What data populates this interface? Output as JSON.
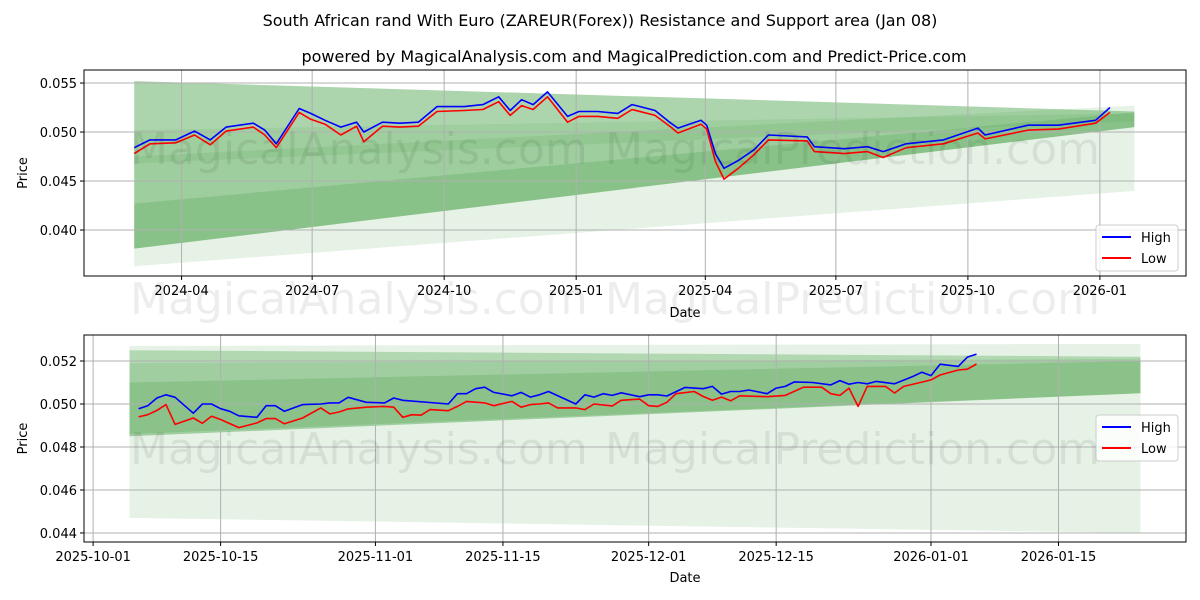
{
  "title": "South African rand With Euro (ZAREUR(Forex)) Resistance and Support area (Jan 08)",
  "subtitle": "powered by MagicalAnalysis.com and MagicalPrediction.com and Predict-Price.com",
  "watermarks": [
    "MagicalAnalysis.com",
    "MagicalPrediction.com"
  ],
  "colors": {
    "high": "#0000ff",
    "low": "#ff0000",
    "band": "#3c9c3c",
    "grid": "#b0b0b0"
  },
  "chart_data": [
    {
      "type": "line",
      "xlabel": "Date",
      "ylabel": "Price",
      "xlim": [
        "2024-01-24",
        "2026-03-02"
      ],
      "ylim": [
        0.03531,
        0.05633
      ],
      "grid": true,
      "legend": {
        "placement": "lower-right",
        "entries": [
          "High",
          "Low"
        ]
      },
      "xticks": [
        {
          "date": "2024-04-01",
          "label": "2024-04"
        },
        {
          "date": "2024-07-01",
          "label": "2024-07"
        },
        {
          "date": "2024-10-01",
          "label": "2024-10"
        },
        {
          "date": "2025-01-01",
          "label": "2025-01"
        },
        {
          "date": "2025-04-01",
          "label": "2025-04"
        },
        {
          "date": "2025-07-01",
          "label": "2025-07"
        },
        {
          "date": "2025-10-01",
          "label": "2025-10"
        },
        {
          "date": "2026-01-01",
          "label": "2026-01"
        }
      ],
      "yticks": [
        {
          "value": 0.04,
          "label": "0.040"
        },
        {
          "value": 0.045,
          "label": "0.045"
        },
        {
          "value": 0.05,
          "label": "0.050"
        },
        {
          "value": 0.055,
          "label": "0.055"
        }
      ],
      "bands": [
        {
          "start": "2024-02-28",
          "end": "2026-01-25",
          "top": [
            0.0552,
            0.0521
          ],
          "bottom": [
            0.0381,
            0.0505
          ],
          "opacity": 0.42
        },
        {
          "start": "2024-02-28",
          "end": "2026-01-25",
          "top": [
            0.0427,
            0.052
          ],
          "bottom": [
            0.0381,
            0.0505
          ],
          "opacity": 0.22
        },
        {
          "start": "2024-02-28",
          "end": "2026-01-25",
          "top": [
            0.0502,
            0.0519
          ],
          "bottom": [
            0.0468,
            0.0511
          ],
          "opacity": 0.12
        },
        {
          "start": "2024-02-28",
          "end": "2026-01-25",
          "top": [
            0.0475,
            0.0527
          ],
          "bottom": [
            0.0363,
            0.044
          ],
          "opacity": 0.13
        }
      ],
      "series": [
        {
          "name": "High",
          "x": [
            "2024-02-28",
            "2024-03-10",
            "2024-03-28",
            "2024-04-10",
            "2024-04-21",
            "2024-05-02",
            "2024-05-21",
            "2024-05-29",
            "2024-06-06",
            "2024-06-22",
            "2024-06-30",
            "2024-07-10",
            "2024-07-21",
            "2024-08-01",
            "2024-08-06",
            "2024-08-19",
            "2024-08-31",
            "2024-09-13",
            "2024-09-26",
            "2024-10-15",
            "2024-10-28",
            "2024-11-08",
            "2024-11-16",
            "2024-11-24",
            "2024-12-02",
            "2024-12-12",
            "2024-12-26",
            "2025-01-03",
            "2025-01-16",
            "2025-01-30",
            "2025-02-09",
            "2025-02-25",
            "2025-03-08",
            "2025-03-13",
            "2025-03-29",
            "2025-04-02",
            "2025-04-08",
            "2025-04-14",
            "2025-04-24",
            "2025-05-05",
            "2025-05-15",
            "2025-06-11",
            "2025-06-16",
            "2025-07-07",
            "2025-07-23",
            "2025-08-03",
            "2025-08-19",
            "2025-09-14",
            "2025-10-08",
            "2025-10-13",
            "2025-11-12",
            "2025-12-03",
            "2025-12-29",
            "2026-01-08"
          ],
          "values": [
            0.0484,
            0.0492,
            0.0492,
            0.0501,
            0.0492,
            0.0505,
            0.0509,
            0.0502,
            0.0488,
            0.0524,
            0.0519,
            0.0512,
            0.0505,
            0.051,
            0.05,
            0.051,
            0.0509,
            0.051,
            0.0526,
            0.0526,
            0.0528,
            0.0536,
            0.0522,
            0.0533,
            0.0528,
            0.0541,
            0.0516,
            0.0521,
            0.0521,
            0.0519,
            0.0528,
            0.0522,
            0.0509,
            0.0504,
            0.0512,
            0.0507,
            0.0478,
            0.0463,
            0.0471,
            0.0482,
            0.0497,
            0.0495,
            0.0485,
            0.0483,
            0.0485,
            0.048,
            0.0488,
            0.0492,
            0.0504,
            0.0497,
            0.0507,
            0.0507,
            0.0512,
            0.0525
          ]
        },
        {
          "name": "Low",
          "x": [
            "2024-02-28",
            "2024-03-10",
            "2024-03-28",
            "2024-04-10",
            "2024-04-21",
            "2024-05-02",
            "2024-05-21",
            "2024-05-29",
            "2024-06-06",
            "2024-06-22",
            "2024-06-30",
            "2024-07-10",
            "2024-07-21",
            "2024-08-01",
            "2024-08-06",
            "2024-08-19",
            "2024-08-31",
            "2024-09-13",
            "2024-09-26",
            "2024-10-15",
            "2024-10-28",
            "2024-11-08",
            "2024-11-16",
            "2024-11-24",
            "2024-12-02",
            "2024-12-12",
            "2024-12-26",
            "2025-01-03",
            "2025-01-16",
            "2025-01-30",
            "2025-02-09",
            "2025-02-25",
            "2025-03-08",
            "2025-03-13",
            "2025-03-29",
            "2025-04-02",
            "2025-04-08",
            "2025-04-14",
            "2025-04-24",
            "2025-05-05",
            "2025-05-15",
            "2025-06-11",
            "2025-06-16",
            "2025-07-07",
            "2025-07-23",
            "2025-08-03",
            "2025-08-19",
            "2025-09-14",
            "2025-10-08",
            "2025-10-13",
            "2025-11-12",
            "2025-12-03",
            "2025-12-29",
            "2026-01-08"
          ],
          "values": [
            0.0478,
            0.0488,
            0.0489,
            0.0497,
            0.0487,
            0.0501,
            0.0505,
            0.0497,
            0.0484,
            0.052,
            0.0513,
            0.0508,
            0.0497,
            0.0506,
            0.049,
            0.0506,
            0.0505,
            0.0506,
            0.0521,
            0.0522,
            0.0523,
            0.0531,
            0.0517,
            0.0527,
            0.0523,
            0.0536,
            0.051,
            0.0516,
            0.0516,
            0.0514,
            0.0523,
            0.0517,
            0.0505,
            0.0499,
            0.0508,
            0.0503,
            0.047,
            0.0452,
            0.0463,
            0.0477,
            0.0492,
            0.0491,
            0.048,
            0.0478,
            0.048,
            0.0474,
            0.0484,
            0.0488,
            0.0499,
            0.0493,
            0.0502,
            0.0503,
            0.0509,
            0.052
          ]
        }
      ]
    },
    {
      "type": "line",
      "xlabel": "Date",
      "ylabel": "Price",
      "xlim": [
        "2025-09-30",
        "2026-01-29"
      ],
      "ylim": [
        0.04358,
        0.05321
      ],
      "grid": true,
      "legend": {
        "placement": "center-right",
        "entries": [
          "High",
          "Low"
        ]
      },
      "xticks": [
        {
          "date": "2025-10-01",
          "label": "2025-10-01"
        },
        {
          "date": "2025-10-15",
          "label": "2025-10-15"
        },
        {
          "date": "2025-11-01",
          "label": "2025-11-01"
        },
        {
          "date": "2025-11-15",
          "label": "2025-11-15"
        },
        {
          "date": "2025-12-01",
          "label": "2025-12-01"
        },
        {
          "date": "2025-12-15",
          "label": "2025-12-15"
        },
        {
          "date": "2026-01-01",
          "label": "2026-01-01"
        },
        {
          "date": "2026-01-15",
          "label": "2026-01-15"
        }
      ],
      "yticks": [
        {
          "value": 0.044,
          "label": "0.044"
        },
        {
          "value": 0.046,
          "label": "0.046"
        },
        {
          "value": 0.048,
          "label": "0.048"
        },
        {
          "value": 0.05,
          "label": "0.050"
        },
        {
          "value": 0.052,
          "label": "0.052"
        }
      ],
      "bands": [
        {
          "start": "2025-10-05",
          "end": "2026-01-24",
          "top": [
            0.0527,
            0.0528
          ],
          "bottom": [
            0.0447,
            0.044
          ],
          "opacity": 0.13
        },
        {
          "start": "2025-10-05",
          "end": "2026-01-24",
          "top": [
            0.0525,
            0.0522
          ],
          "bottom": [
            0.0485,
            0.0505
          ],
          "opacity": 0.3
        },
        {
          "start": "2025-10-05",
          "end": "2026-01-24",
          "top": [
            0.0519,
            0.0521
          ],
          "bottom": [
            0.0485,
            0.0505
          ],
          "opacity": 0.15
        },
        {
          "start": "2025-10-05",
          "end": "2026-01-24",
          "top": [
            0.051,
            0.052
          ],
          "bottom": [
            0.0486,
            0.0505
          ],
          "opacity": 0.22
        }
      ],
      "series": [
        {
          "name": "High",
          "x": [
            "2025-10-06",
            "2025-10-07",
            "2025-10-08",
            "2025-10-09",
            "2025-10-10",
            "2025-10-12",
            "2025-10-13",
            "2025-10-14",
            "2025-10-15",
            "2025-10-16",
            "2025-10-17",
            "2025-10-19",
            "2025-10-20",
            "2025-10-21",
            "2025-10-22",
            "2025-10-24",
            "2025-10-26",
            "2025-10-27",
            "2025-10-28",
            "2025-10-29",
            "2025-10-31",
            "2025-11-02",
            "2025-11-03",
            "2025-11-04",
            "2025-11-09",
            "2025-11-10",
            "2025-11-11",
            "2025-11-12",
            "2025-11-13",
            "2025-11-14",
            "2025-11-16",
            "2025-11-17",
            "2025-11-18",
            "2025-11-19",
            "2025-11-20",
            "2025-11-23",
            "2025-11-24",
            "2025-11-25",
            "2025-11-26",
            "2025-11-27",
            "2025-11-28",
            "2025-11-30",
            "2025-12-01",
            "2025-12-02",
            "2025-12-03",
            "2025-12-05",
            "2025-12-07",
            "2025-12-08",
            "2025-12-09",
            "2025-12-10",
            "2025-12-11",
            "2025-12-12",
            "2025-12-14",
            "2025-12-15",
            "2025-12-16",
            "2025-12-17",
            "2025-12-19",
            "2025-12-21",
            "2025-12-22",
            "2025-12-23",
            "2025-12-24",
            "2025-12-25",
            "2025-12-26",
            "2025-12-28",
            "2025-12-30",
            "2025-12-31",
            "2026-01-01",
            "2026-01-02",
            "2026-01-04",
            "2026-01-05",
            "2026-01-06"
          ],
          "values": [
            0.04978,
            0.04992,
            0.05028,
            0.05043,
            0.05031,
            0.04957,
            0.05,
            0.05,
            0.04978,
            0.04966,
            0.04945,
            0.04938,
            0.04992,
            0.04992,
            0.04966,
            0.04997,
            0.05,
            0.05005,
            0.05005,
            0.05031,
            0.05008,
            0.05005,
            0.05028,
            0.05017,
            0.05,
            0.05048,
            0.05048,
            0.05071,
            0.05078,
            0.05054,
            0.05038,
            0.05054,
            0.05032,
            0.05043,
            0.05058,
            0.05,
            0.05043,
            0.05032,
            0.05048,
            0.0504,
            0.05052,
            0.05034,
            0.05043,
            0.05043,
            0.05037,
            0.05077,
            0.05071,
            0.05082,
            0.05046,
            0.05058,
            0.05058,
            0.05065,
            0.05048,
            0.05074,
            0.05082,
            0.05103,
            0.051,
            0.05089,
            0.05109,
            0.05092,
            0.051,
            0.05094,
            0.05105,
            0.05094,
            0.05128,
            0.05148,
            0.05132,
            0.05185,
            0.05175,
            0.05218,
            0.05232
          ]
        },
        {
          "name": "Low",
          "x": [
            "2025-10-06",
            "2025-10-07",
            "2025-10-08",
            "2025-10-09",
            "2025-10-10",
            "2025-10-12",
            "2025-10-13",
            "2025-10-14",
            "2025-10-15",
            "2025-10-17",
            "2025-10-19",
            "2025-10-20",
            "2025-10-21",
            "2025-10-22",
            "2025-10-24",
            "2025-10-26",
            "2025-10-27",
            "2025-10-28",
            "2025-10-29",
            "2025-10-31",
            "2025-11-02",
            "2025-11-03",
            "2025-11-04",
            "2025-11-05",
            "2025-11-06",
            "2025-11-07",
            "2025-11-09",
            "2025-11-10",
            "2025-11-11",
            "2025-11-13",
            "2025-11-14",
            "2025-11-16",
            "2025-11-17",
            "2025-11-18",
            "2025-11-19",
            "2025-11-20",
            "2025-11-21",
            "2025-11-23",
            "2025-11-24",
            "2025-11-25",
            "2025-11-27",
            "2025-11-28",
            "2025-11-30",
            "2025-12-01",
            "2025-12-02",
            "2025-12-03",
            "2025-12-04",
            "2025-12-06",
            "2025-12-07",
            "2025-12-08",
            "2025-12-09",
            "2025-12-10",
            "2025-12-11",
            "2025-12-14",
            "2025-12-16",
            "2025-12-18",
            "2025-12-20",
            "2025-12-21",
            "2025-12-22",
            "2025-12-23",
            "2025-12-24",
            "2025-12-25",
            "2025-12-27",
            "2025-12-28",
            "2025-12-29",
            "2025-12-31",
            "2026-01-01",
            "2026-01-02",
            "2026-01-04",
            "2026-01-05",
            "2026-01-06"
          ],
          "values": [
            0.0494,
            0.0495,
            0.0497,
            0.04997,
            0.04905,
            0.04935,
            0.0491,
            0.04943,
            0.04928,
            0.0489,
            0.04912,
            0.04932,
            0.04932,
            0.04908,
            0.04935,
            0.04982,
            0.04954,
            0.04963,
            0.04977,
            0.04985,
            0.04989,
            0.04985,
            0.04938,
            0.0495,
            0.04948,
            0.04974,
            0.04969,
            0.04989,
            0.05012,
            0.05005,
            0.04992,
            0.05012,
            0.04985,
            0.04997,
            0.05,
            0.05005,
            0.04982,
            0.04982,
            0.04974,
            0.05,
            0.04991,
            0.05017,
            0.05023,
            0.04992,
            0.04989,
            0.05008,
            0.05048,
            0.05058,
            0.05035,
            0.05017,
            0.05032,
            0.05015,
            0.05038,
            0.05034,
            0.0504,
            0.05078,
            0.05078,
            0.05048,
            0.0504,
            0.05074,
            0.04989,
            0.05082,
            0.05082,
            0.05051,
            0.05082,
            0.05102,
            0.05112,
            0.05135,
            0.05158,
            0.05162,
            0.05186
          ]
        }
      ]
    }
  ]
}
